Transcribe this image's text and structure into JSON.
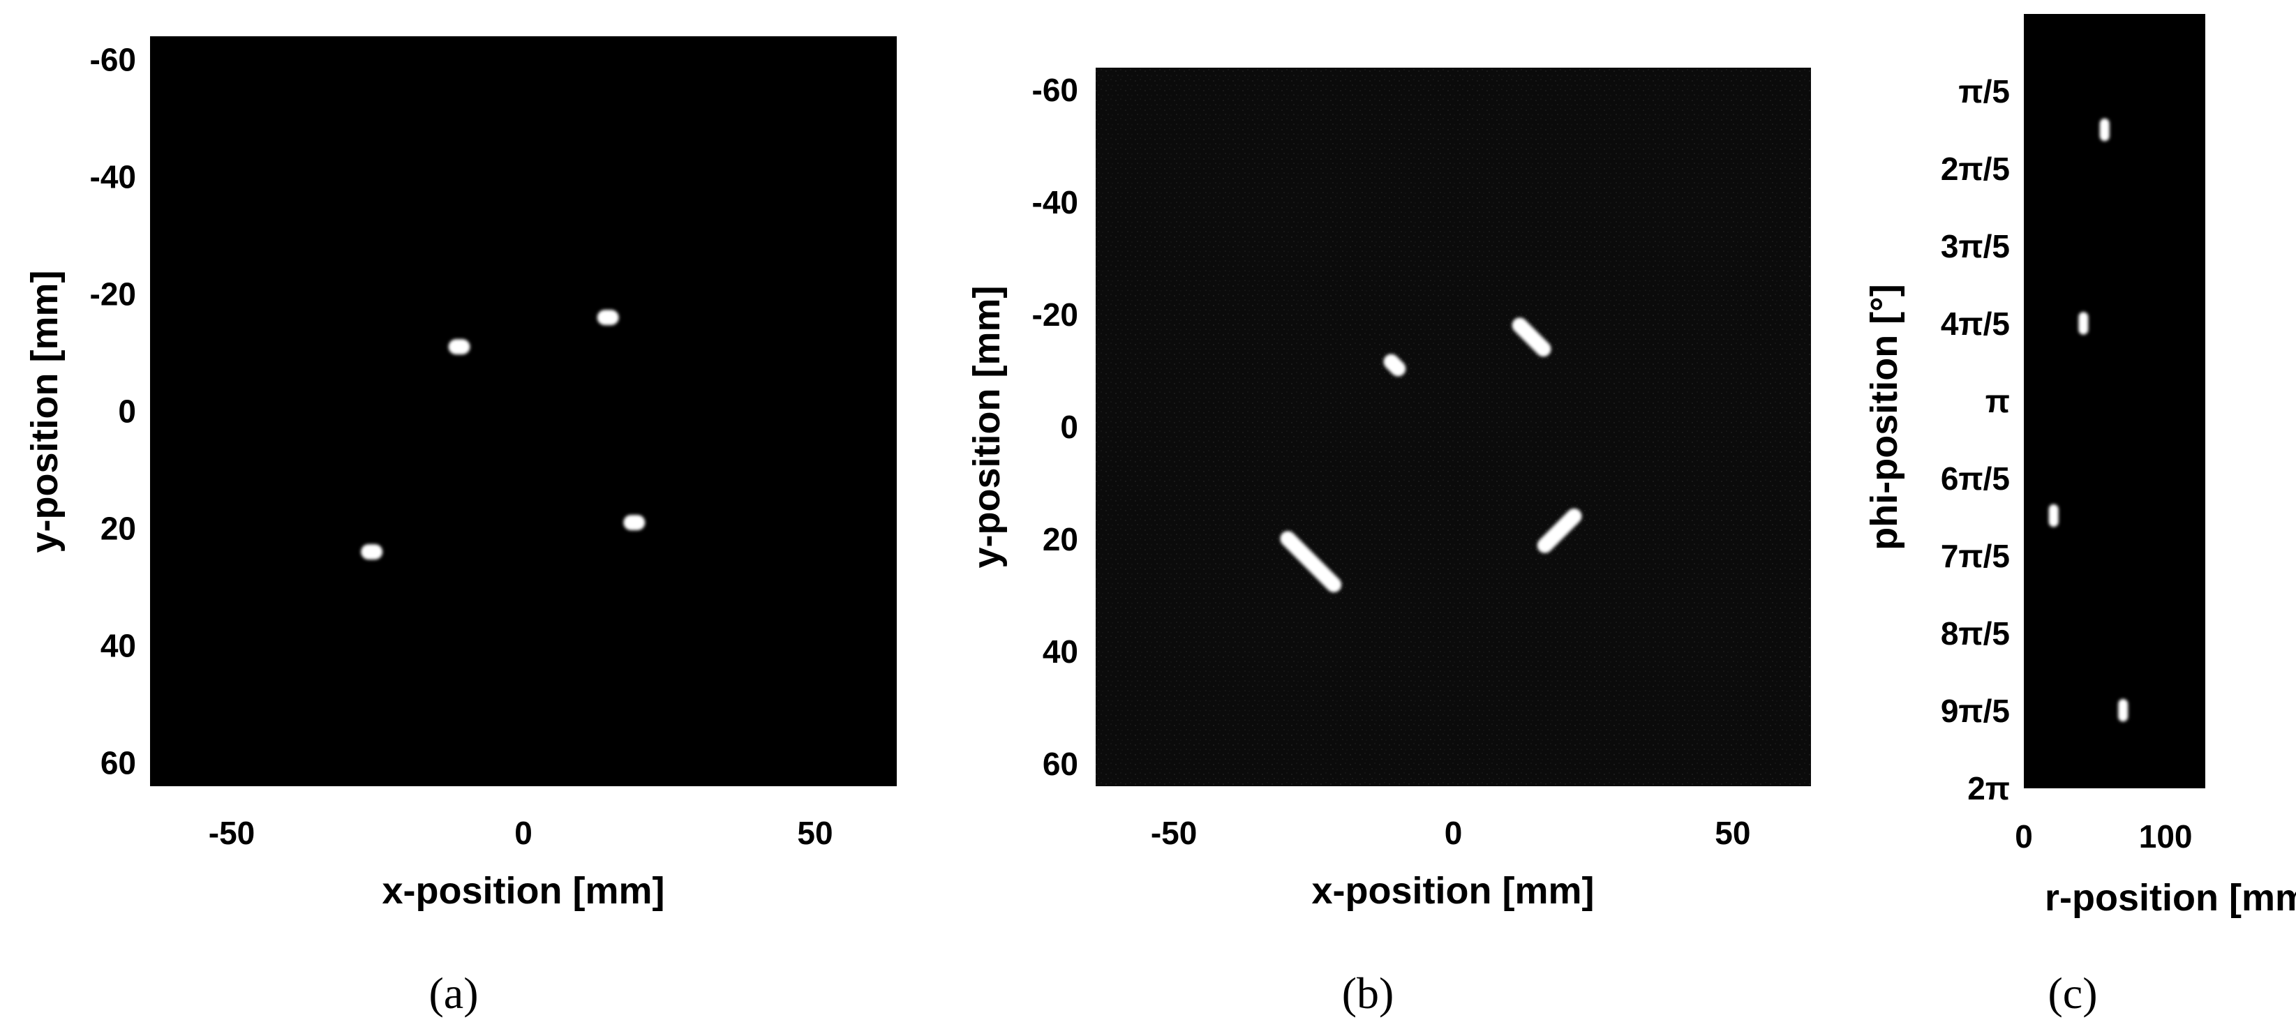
{
  "chart_data": [
    {
      "panel": "a",
      "type": "heatmap",
      "caption": "(a)",
      "xlabel": "x-position [mm]",
      "ylabel": "y-position [mm]",
      "xlim": [
        -64,
        64
      ],
      "ylim": [
        -64,
        64
      ],
      "y_inverted": true,
      "x_ticks": [
        -50,
        0,
        50
      ],
      "x_tick_labels": [
        "-50",
        "0",
        "50"
      ],
      "y_ticks": [
        -60,
        -40,
        -20,
        0,
        20,
        40,
        60
      ],
      "y_tick_labels": [
        "-60",
        "-40",
        "-20",
        "0",
        "20",
        "40",
        "60"
      ],
      "background": "#000000",
      "spots": [
        {
          "x": -11,
          "y": -11,
          "length": 1.5,
          "angle": 0
        },
        {
          "x": 14.5,
          "y": -16,
          "length": 1.5,
          "angle": 0
        },
        {
          "x": 19,
          "y": 19,
          "length": 1.5,
          "angle": 0
        },
        {
          "x": -26,
          "y": 24,
          "length": 1.5,
          "angle": 0
        }
      ]
    },
    {
      "panel": "b",
      "type": "heatmap",
      "caption": "(b)",
      "xlabel": "x-position [mm]",
      "ylabel": "y-position [mm]",
      "xlim": [
        -64,
        64
      ],
      "ylim": [
        -64,
        64
      ],
      "y_inverted": true,
      "x_ticks": [
        -50,
        0,
        50
      ],
      "x_tick_labels": [
        "-50",
        "0",
        "50"
      ],
      "y_ticks": [
        -60,
        -40,
        -20,
        0,
        20,
        40,
        60
      ],
      "y_tick_labels": [
        "-60",
        "-40",
        "-20",
        "0",
        "20",
        "40",
        "60"
      ],
      "background": "#0b0b0b",
      "spots": [
        {
          "x": -10.5,
          "y": -11,
          "length": 2,
          "angle": 45
        },
        {
          "x": 14,
          "y": -16,
          "length": 5,
          "angle": 45
        },
        {
          "x": 19,
          "y": 18.5,
          "length": 6,
          "angle": -45
        },
        {
          "x": -25.5,
          "y": 24,
          "length": 9,
          "angle": 45
        }
      ]
    },
    {
      "panel": "c",
      "type": "heatmap",
      "caption": "(c)",
      "xlabel": "r-position [mm]",
      "ylabel": "phi-position [°]",
      "xlim": [
        0,
        128
      ],
      "ylim": [
        0,
        6.283
      ],
      "y_inverted": true,
      "x_ticks": [
        0,
        100
      ],
      "x_tick_labels": [
        "0",
        "100"
      ],
      "y_ticks": [
        0.628,
        1.257,
        1.885,
        2.513,
        3.142,
        3.77,
        4.398,
        5.027,
        5.655,
        6.283
      ],
      "y_tick_labels": [
        "π/5",
        "2π/5",
        "3π/5",
        "4π/5",
        "π",
        "6π/5",
        "7π/5",
        "8π/5",
        "9π/5",
        "2π"
      ],
      "background": "#000000",
      "spots": [
        {
          "x": 57,
          "y": 0.94,
          "length": 0.12,
          "angle": 90
        },
        {
          "x": 42,
          "y": 2.51,
          "length": 0.12,
          "angle": 90
        },
        {
          "x": 21,
          "y": 4.07,
          "length": 0.12,
          "angle": 90
        },
        {
          "x": 70,
          "y": 5.65,
          "length": 0.12,
          "angle": 90
        }
      ]
    }
  ],
  "colors": {
    "spot": "#ffffff",
    "axis_text": "#000000",
    "page_background": "#ffffff"
  }
}
